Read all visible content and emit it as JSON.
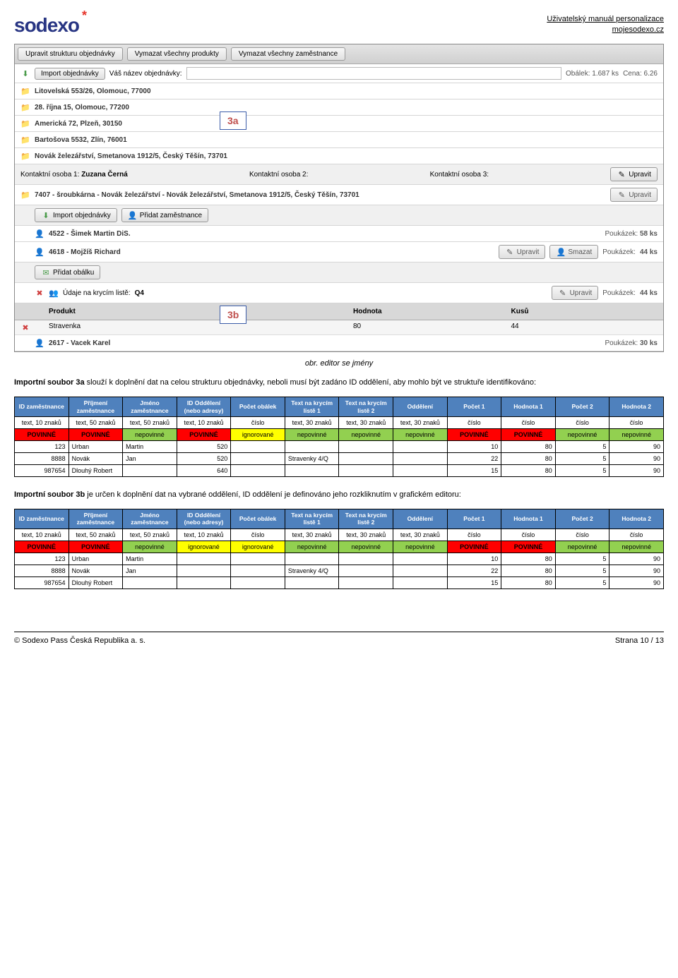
{
  "header": {
    "logo_text": "sodexo",
    "doc_title_line1": "Uživatelský manuál personalizace",
    "doc_title_line2": "mojesodexo.cz"
  },
  "screenshot": {
    "toolbar": {
      "btn1": "Upravit strukturu objednávky",
      "btn2": "Vymazat všechny produkty",
      "btn3": "Vymazat všechny zaměstnance"
    },
    "import_row": {
      "btn": "Import objednávky",
      "label": "Váš název objednávky:",
      "meta_obalek": "Obálek: 1.687 ks",
      "meta_cena": "Cena: 6.26"
    },
    "addresses": [
      "Litovelská 553/26, Olomouc, 77000",
      "28. října 15, Olomouc, 77200",
      "Americká 72, Plzeň, 30150",
      "Bartošova 5532, Zlín, 76001",
      "Novák železářství, Smetanova 1912/5, Český Těšín, 73701"
    ],
    "contacts": {
      "c1_label": "Kontaktní osoba 1:",
      "c1_val": "Zuzana Černá",
      "c2_label": "Kontaktní osoba 2:",
      "c3_label": "Kontaktní osoba 3:",
      "upravit": "Upravit"
    },
    "dept_row": "7407 - šroubkárna - Novák železářství - Novák železářství, Smetanova 1912/5, Český Těšín, 73701",
    "dept_btns": {
      "import": "Import objednávky",
      "add_emp": "Přidat zaměstnance"
    },
    "emp1": {
      "text": "4522 - Šimek Martin DiS.",
      "poukazek": "Poukázek:",
      "val": "58 ks"
    },
    "emp2": {
      "text": "4618 - Mojžíš Richard",
      "upravit": "Upravit",
      "smazat": "Smazat",
      "poukazek": "Poukázek:",
      "val": "44 ks"
    },
    "add_env": "Přidat obálku",
    "kryci": {
      "label": "Údaje na krycím listě:",
      "val": "Q4",
      "poukazek": "Poukázek:",
      "pval": "44 ks"
    },
    "prod_header": {
      "c1": "Produkt",
      "c2": "Hodnota",
      "c3": "Kusů"
    },
    "prod_row": {
      "c1": "Stravenka",
      "c2": "80",
      "c3": "44"
    },
    "emp3": {
      "text": "2617 - Vacek Karel",
      "poukazek": "Poukázek:",
      "val": "30 ks"
    }
  },
  "callouts": {
    "a": "3a",
    "b": "3b"
  },
  "caption": "obr. editor se jmény",
  "para1_prefix": "Importní soubor 3a",
  "para1_rest": " slouží k doplnění dat na celou strukturu objednávky, neboli musí být zadáno ID oddělení, aby mohlo být ve struktuře identifikováno:",
  "para2_prefix": "Importní soubor 3b",
  "para2_rest": " je určen k doplnění dat na vybrané oddělení, ID oddělení je definováno jeho rozkliknutím v grafickém editoru:",
  "spec_headers": [
    "ID zaměstnance",
    "Příjmení zaměstnance",
    "Jméno zaměstnance",
    "ID Oddělení (nebo adresy)",
    "Počet obálek",
    "Text na krycím listě 1",
    "Text na krycím listě 2",
    "Oddělení",
    "Počet 1",
    "Hodnota 1",
    "Počet 2",
    "Hodnota 2"
  ],
  "spec_types": [
    "text, 10 znaků",
    "text, 50 znaků",
    "text, 50 znaků",
    "text, 10 znaků",
    "číslo",
    "text, 30 znaků",
    "text, 30 znaků",
    "text, 30 znaků",
    "číslo",
    "číslo",
    "číslo",
    "číslo"
  ],
  "spec_req_3a": [
    "POVINNÉ",
    "POVINNÉ",
    "nepovinné",
    "POVINNÉ",
    "ignorované",
    "nepovinné",
    "nepovinné",
    "nepovinné",
    "POVINNÉ",
    "POVINNÉ",
    "nepovinné",
    "nepovinné"
  ],
  "spec_req_3b": [
    "POVINNÉ",
    "POVINNÉ",
    "nepovinné",
    "ignorované",
    "ignorované",
    "nepovinné",
    "nepovinné",
    "nepovinné",
    "POVINNÉ",
    "POVINNÉ",
    "nepovinné",
    "nepovinné"
  ],
  "spec_data_3a": [
    [
      "123",
      "Urban",
      "Martin",
      "520",
      "",
      "",
      "",
      "",
      "10",
      "80",
      "5",
      "90"
    ],
    [
      "8888",
      "Novák",
      "Jan",
      "520",
      "",
      "Stravenky 4/Q",
      "",
      "",
      "22",
      "80",
      "5",
      "90"
    ],
    [
      "987654",
      "Dlouhý Robert",
      "",
      "640",
      "",
      "",
      "",
      "",
      "15",
      "80",
      "5",
      "90"
    ]
  ],
  "spec_data_3b": [
    [
      "123",
      "Urban",
      "Martin",
      "",
      "",
      "",
      "",
      "",
      "10",
      "80",
      "5",
      "90"
    ],
    [
      "8888",
      "Novák",
      "Jan",
      "",
      "",
      "Stravenky 4/Q",
      "",
      "",
      "22",
      "80",
      "5",
      "90"
    ],
    [
      "987654",
      "Dlouhý Robert",
      "",
      "",
      "",
      "",
      "",
      "",
      "15",
      "80",
      "5",
      "90"
    ]
  ],
  "req_styles": {
    "POVINNÉ": "req-povinne",
    "nepovinné": "req-nepovinne",
    "ignorované": "req-ignorovane"
  },
  "col_align": [
    "num",
    "data",
    "data",
    "num",
    "data",
    "data",
    "data",
    "data",
    "num",
    "num",
    "num",
    "num"
  ],
  "footer": {
    "left": "© Sodexo Pass Česká Republika a. s.",
    "right": "Strana 10 / 13"
  }
}
